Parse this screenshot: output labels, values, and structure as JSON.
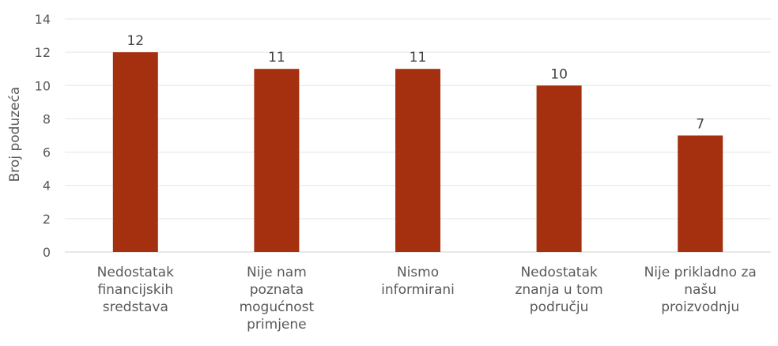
{
  "chart_data": {
    "type": "bar",
    "title": "",
    "xlabel": "",
    "ylabel": "Broj poduzeća",
    "ylim": [
      0,
      14
    ],
    "yticks": [
      0,
      2,
      4,
      6,
      8,
      10,
      12,
      14
    ],
    "grid": true,
    "legend": "none",
    "bar_color": "#A5300F",
    "categories": [
      "Nedostatak\nfinancijskih\nsredstava",
      "Nije nam\npoznata\nmogućnost\nprimjene",
      "Nismo\ninformirani",
      "Nedostatak\nznanja u tom\npodručju",
      "Nije prikladno za\nnašu\nproizvodnju"
    ],
    "values": [
      12,
      11,
      11,
      10,
      7
    ]
  }
}
